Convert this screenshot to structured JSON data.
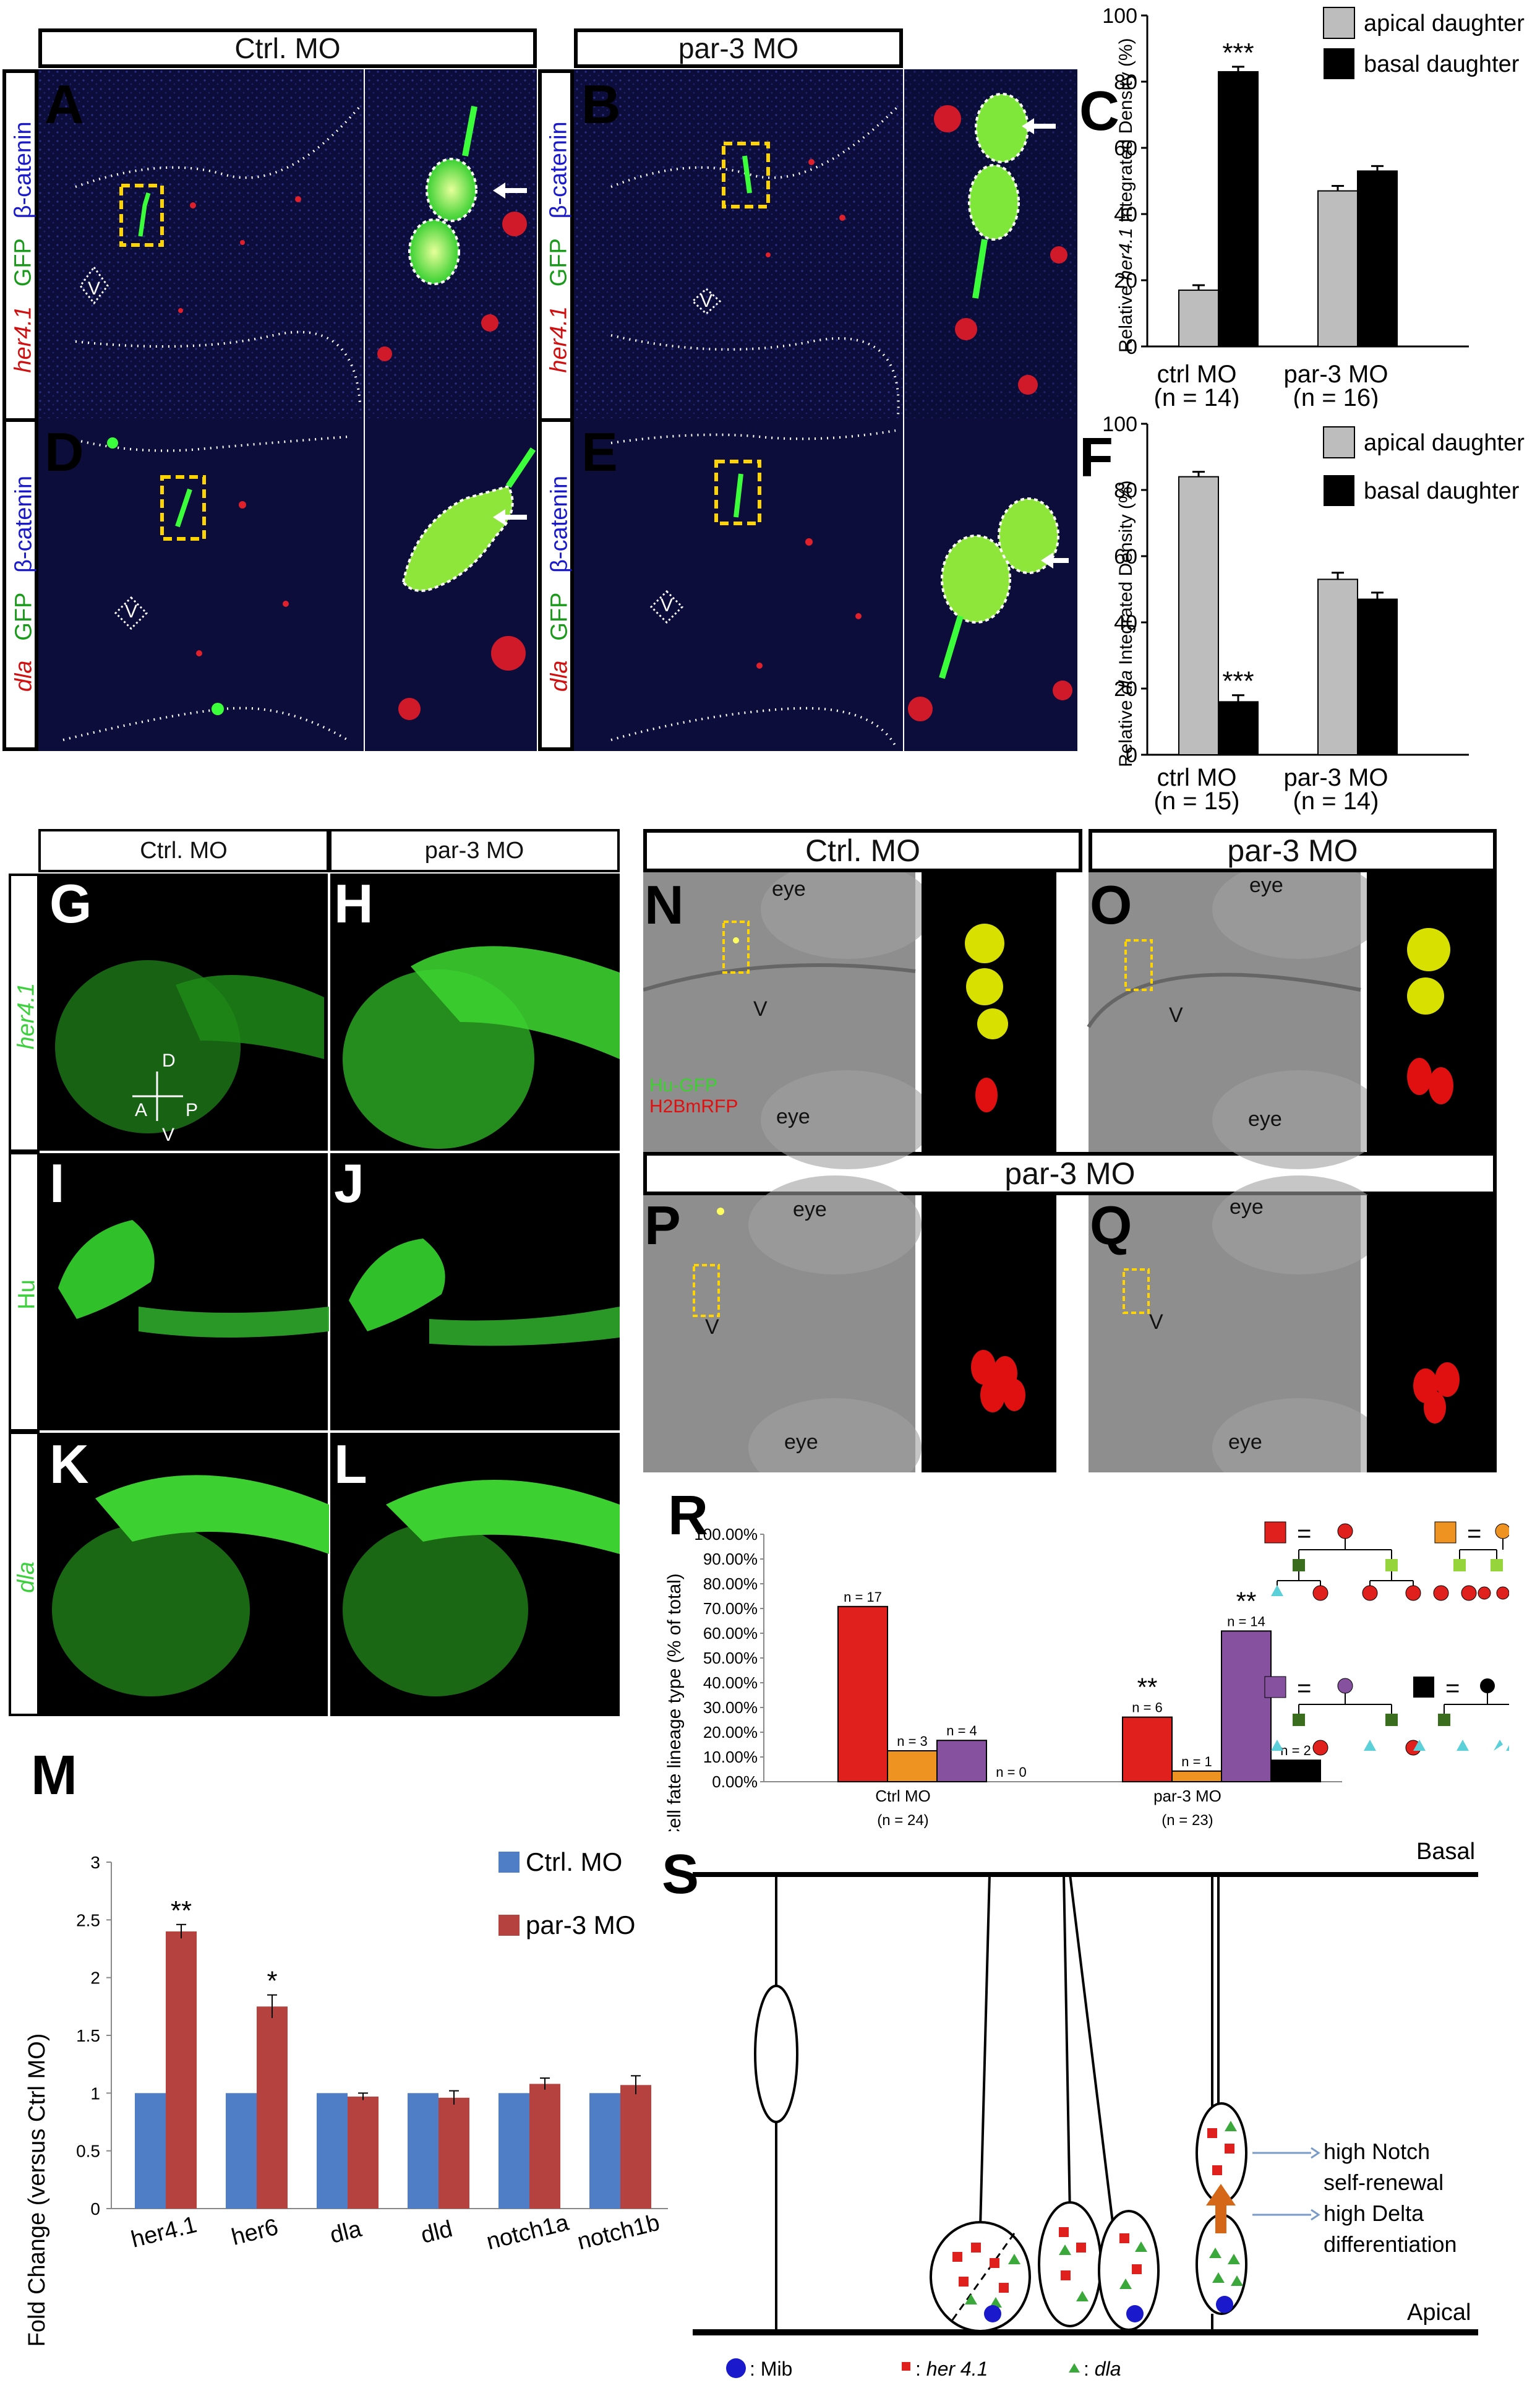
{
  "top": {
    "hdr_left": "Ctrl. MO",
    "hdr_right": "par-3 MO",
    "stain_beta": "β-catenin",
    "stain_gfp": "GFP",
    "stain_her": "her4.1",
    "stain_dla": "dla",
    "letters": [
      "A",
      "B",
      "D",
      "E"
    ],
    "v_label": "V"
  },
  "chart_C": {
    "letter": "C",
    "ylabel_pre": "Relative ",
    "ylabel_gene": "her4.1",
    "ylabel_post": " Integrated Density (%)",
    "legend": [
      "apical daughter",
      "basal daughter"
    ],
    "sig": "***",
    "groups": [
      "ctrl MO",
      "par-3 MO"
    ],
    "ns": [
      "(n = 14)",
      "(n = 16)"
    ]
  },
  "chart_F": {
    "letter": "F",
    "ylabel_pre": "Relative ",
    "ylabel_gene": "dla",
    "ylabel_post": "  Integrated  Density (%)",
    "legend": [
      "apical daughter",
      "basal daughter"
    ],
    "sig": "***",
    "groups": [
      "ctrl MO",
      "par-3 MO"
    ],
    "ns": [
      "(n = 15)",
      "(n = 14)"
    ]
  },
  "middle_left": {
    "hdr_left": "Ctrl. MO",
    "hdr_right": "par-3 MO",
    "row_labels": [
      "her4.1",
      "Hu",
      "dla"
    ],
    "letters": [
      "G",
      "H",
      "I",
      "J",
      "K",
      "L"
    ],
    "axes": {
      "d": "D",
      "a": "A",
      "p": "P",
      "v": "V"
    }
  },
  "middle_right": {
    "hdr_ctrl": "Ctrl. MO",
    "hdr_par3": "par-3 MO",
    "hdr_par3_wide": "par-3 MO",
    "letters": [
      "N",
      "O",
      "P",
      "Q"
    ],
    "eye": "eye",
    "v": "V",
    "legend_hu": "Hu-GFP",
    "legend_h2b": "H2BmRFP"
  },
  "chart_M": {
    "letter": "M",
    "ylabel": "Fold Change (versus Ctrl MO)",
    "legend": [
      "Ctrl. MO",
      "par-3 MO"
    ],
    "sig": [
      "**",
      "*"
    ]
  },
  "chart_R": {
    "letter": "R",
    "ylabel": "Cell fate lineage type (% of total)",
    "groups": [
      "Ctrl MO",
      "par-3 MO"
    ],
    "ns": [
      "(n = 24)",
      "(n = 23)"
    ],
    "sig": "**",
    "eq": "="
  },
  "panel_S": {
    "letter": "S",
    "basal": "Basal",
    "apical": "Apical",
    "notch1": "high Notch",
    "notch2": "self-renewal",
    "delta1": "high Delta",
    "delta2": "differentiation",
    "legend_mib": ": Mib",
    "legend_her_pre": ": ",
    "legend_her": "her 4.1",
    "legend_dla_pre": ": ",
    "legend_dla": "dla"
  },
  "colors": {
    "apical": "#bdbdbd",
    "basal": "#000000",
    "ctrl_blue": "#4f7ec6",
    "par3_red": "#b5423f",
    "lin_red": "#e0201c",
    "lin_orange": "#ee9221",
    "lin_purple": "#86519f",
    "lin_black": "#000000"
  },
  "chart_data": [
    {
      "type": "bar",
      "panel": "C",
      "categories": [
        "ctrl MO",
        "par-3 MO"
      ],
      "series": [
        {
          "name": "apical daughter",
          "values": [
            17,
            47
          ],
          "errors": [
            1.5,
            1.5
          ]
        },
        {
          "name": "basal daughter",
          "values": [
            83,
            53
          ],
          "errors": [
            1.5,
            1.5
          ]
        }
      ],
      "ylim": [
        0,
        100
      ],
      "yticks": [
        0,
        20,
        40,
        60,
        80,
        100
      ]
    },
    {
      "type": "bar",
      "panel": "F",
      "categories": [
        "ctrl MO",
        "par-3 MO"
      ],
      "series": [
        {
          "name": "apical daughter",
          "values": [
            84,
            53
          ],
          "errors": [
            1.5,
            2
          ]
        },
        {
          "name": "basal daughter",
          "values": [
            16,
            47
          ],
          "errors": [
            2,
            2
          ]
        }
      ],
      "ylim": [
        0,
        100
      ],
      "yticks": [
        0,
        20,
        40,
        60,
        80,
        100
      ]
    },
    {
      "type": "bar",
      "panel": "M",
      "categories": [
        "her4.1",
        "her6",
        "dla",
        "dld",
        "notch1a",
        "notch1b"
      ],
      "series": [
        {
          "name": "Ctrl. MO",
          "values": [
            1,
            1,
            1,
            1,
            1,
            1
          ]
        },
        {
          "name": "par-3 MO",
          "values": [
            2.4,
            1.75,
            0.97,
            0.96,
            1.08,
            1.07
          ],
          "errors": [
            0.06,
            0.1,
            0.03,
            0.06,
            0.05,
            0.08
          ]
        }
      ],
      "ylim": [
        0,
        3
      ],
      "yticks": [
        "0",
        "0.5",
        "1",
        "1.5",
        "2",
        "2.5",
        "3"
      ]
    },
    {
      "type": "bar",
      "panel": "R",
      "categories": [
        "Ctrl MO",
        "par-3 MO"
      ],
      "series": [
        {
          "name": "red",
          "values": [
            70.8,
            26.1
          ],
          "labels": [
            "n = 17",
            "n = 6"
          ]
        },
        {
          "name": "orange",
          "values": [
            12.5,
            4.3
          ],
          "labels": [
            "n = 3",
            "n = 1"
          ]
        },
        {
          "name": "purple",
          "values": [
            16.7,
            60.9
          ],
          "labels": [
            "n = 4",
            "n = 14"
          ]
        },
        {
          "name": "black",
          "values": [
            0,
            8.7
          ],
          "labels": [
            "n = 0",
            "n = 2"
          ]
        }
      ],
      "ylim": [
        0,
        100
      ],
      "yticks": [
        "0.00%",
        "10.00%",
        "20.00%",
        "30.00%",
        "40.00%",
        "50.00%",
        "60.00%",
        "70.00%",
        "80.00%",
        "90.00%",
        "100.00%"
      ]
    }
  ]
}
